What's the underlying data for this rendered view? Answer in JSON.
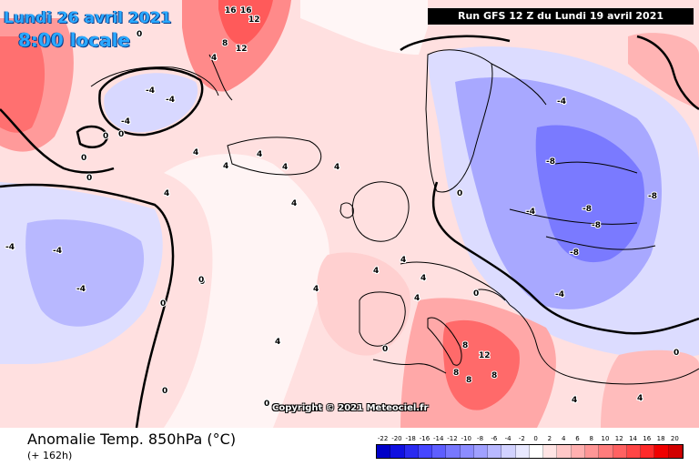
{
  "header": {
    "date": "Lundi 26 avril 2021",
    "time": "8:00 locale",
    "run": "Run GFS 12 Z du Lundi 19 avril 2021"
  },
  "copyright": "Copyright © 2021 Meteociel.fr",
  "footer": {
    "title": "Anomalie Temp. 850hPa (°C)",
    "lead_time": "(+ 162h)"
  },
  "legend": {
    "values": [
      "-22",
      "-20",
      "-18",
      "-16",
      "-14",
      "-12",
      "-10",
      "-8",
      "-6",
      "-4",
      "-2",
      "0",
      "2",
      "4",
      "6",
      "8",
      "10",
      "12",
      "14",
      "16",
      "18",
      "20"
    ],
    "colors": [
      "#0000c8",
      "#1010e0",
      "#2a2af0",
      "#4646ff",
      "#5e5eff",
      "#7878ff",
      "#8c8cff",
      "#a0a0ff",
      "#b8b8ff",
      "#d2d2ff",
      "#e8e8ff",
      "#ffffff",
      "#ffe4e4",
      "#ffc8c8",
      "#ffb0b0",
      "#ff9696",
      "#ff7c7c",
      "#ff6262",
      "#ff4646",
      "#ff2a2a",
      "#f00000",
      "#d20000"
    ]
  },
  "contour_labels": [
    "16",
    "16",
    "12",
    "12",
    "8",
    "4",
    "-4",
    "-4",
    "-4",
    "4",
    "4",
    "0",
    "0",
    "0",
    "0",
    "4",
    "4",
    "4",
    "4",
    "4",
    "-4",
    "-4",
    "0",
    "0",
    "-4",
    "0",
    "0",
    "4",
    "4",
    "4",
    "4",
    "8",
    "8",
    "12",
    "8",
    "8",
    "4",
    "4",
    "-4",
    "-8",
    "-8",
    "-8",
    "-8",
    "-8",
    "-4",
    "-4",
    "0",
    "0",
    "0",
    "4",
    "4",
    "0",
    "0",
    "0"
  ],
  "colors": {
    "warm_bg": "#ffd6d6",
    "cold_bg": "#c8c8ff",
    "date_text": "#29a8ff"
  }
}
